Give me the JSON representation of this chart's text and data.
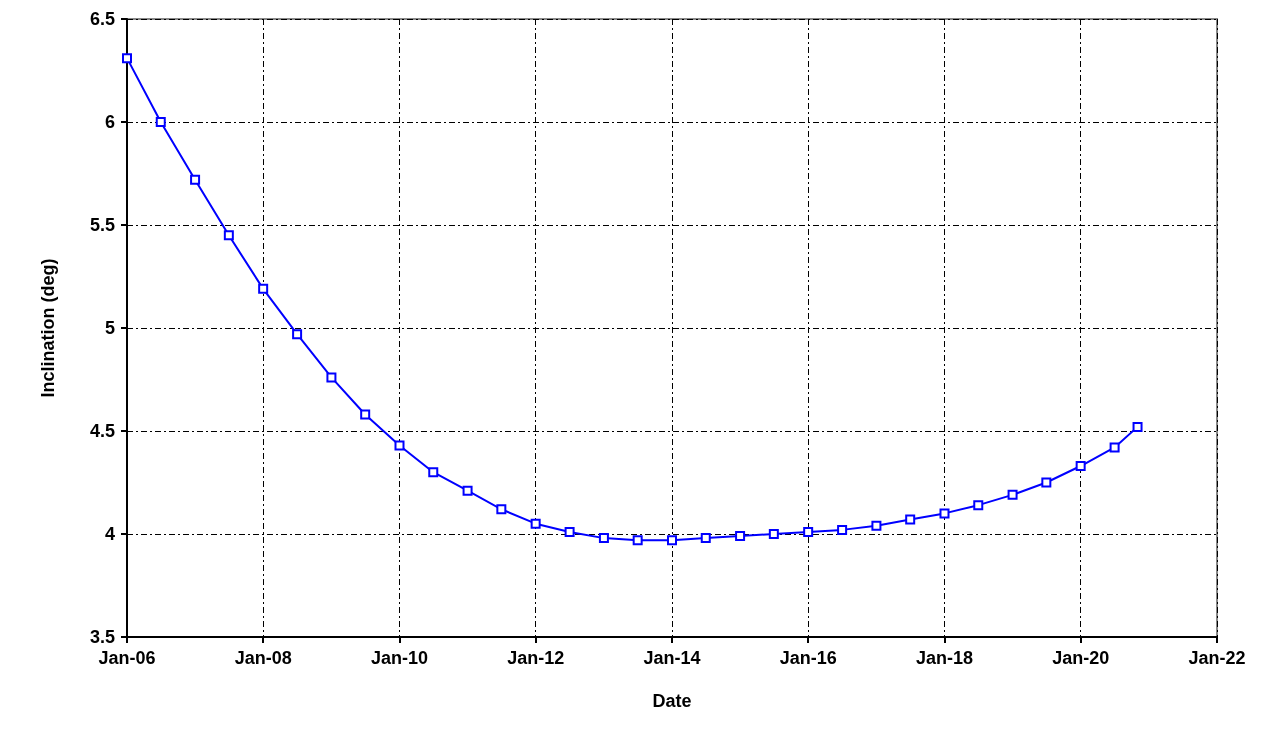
{
  "chart_data": {
    "type": "line",
    "xlabel": "Date",
    "ylabel": "Inclination (deg)",
    "x": [
      "2006-01",
      "2006-07",
      "2007-01",
      "2007-07",
      "2008-01",
      "2008-07",
      "2009-01",
      "2009-07",
      "2010-01",
      "2010-07",
      "2011-01",
      "2011-07",
      "2012-01",
      "2012-07",
      "2013-01",
      "2013-07",
      "2014-01",
      "2014-07",
      "2015-01",
      "2015-07",
      "2016-01",
      "2016-07",
      "2017-01",
      "2017-07",
      "2018-01",
      "2018-07",
      "2019-01",
      "2019-07",
      "2020-01",
      "2020-07",
      "2020-11"
    ],
    "series": [
      {
        "color": "#0000ff",
        "values": [
          6.31,
          6.0,
          5.72,
          5.45,
          5.19,
          4.97,
          4.76,
          4.58,
          4.43,
          4.3,
          4.21,
          4.12,
          4.05,
          4.01,
          3.98,
          3.97,
          3.97,
          3.98,
          3.99,
          4.0,
          4.01,
          4.02,
          4.04,
          4.07,
          4.1,
          4.14,
          4.19,
          4.25,
          4.33,
          4.42,
          4.52
        ]
      }
    ],
    "xlim": [
      "2006-01",
      "2022-01"
    ],
    "xticks": [
      {
        "value": "2006-01",
        "label": "Jan-06"
      },
      {
        "value": "2008-01",
        "label": "Jan-08"
      },
      {
        "value": "2010-01",
        "label": "Jan-10"
      },
      {
        "value": "2012-01",
        "label": "Jan-12"
      },
      {
        "value": "2014-01",
        "label": "Jan-14"
      },
      {
        "value": "2016-01",
        "label": "Jan-16"
      },
      {
        "value": "2018-01",
        "label": "Jan-18"
      },
      {
        "value": "2020-01",
        "label": "Jan-20"
      },
      {
        "value": "2022-01",
        "label": "Jan-22"
      }
    ],
    "ylim": [
      3.5,
      6.5
    ],
    "yticks": [
      3.5,
      4,
      4.5,
      5,
      5.5,
      6,
      6.5
    ],
    "grid": true,
    "marker": "square",
    "line_style": "solid"
  }
}
